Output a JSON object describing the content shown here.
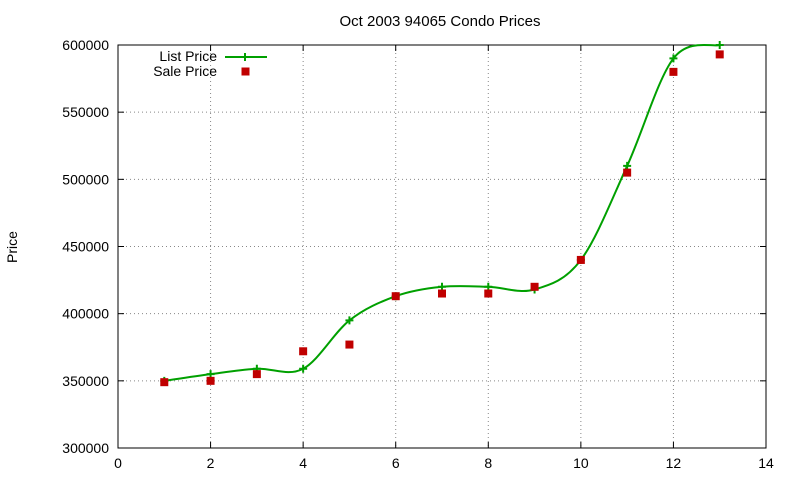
{
  "chart_data": {
    "type": "line",
    "title": "Oct 2003 94065 Condo Prices",
    "xlabel": "",
    "ylabel": "Price",
    "xlim": [
      0,
      14
    ],
    "ylim": [
      300000,
      600000
    ],
    "xticks": [
      0,
      2,
      4,
      6,
      8,
      10,
      12,
      14
    ],
    "yticks": [
      300000,
      350000,
      400000,
      450000,
      500000,
      550000,
      600000
    ],
    "grid": true,
    "legend_position": "top-left",
    "series": [
      {
        "name": "List Price",
        "style": "smooth line with plus markers",
        "color": "#00a000",
        "x": [
          1,
          2,
          3,
          4,
          5,
          6,
          7,
          8,
          9,
          10,
          11,
          12,
          13
        ],
        "y": [
          350000,
          355000,
          359000,
          359000,
          395000,
          413000,
          420000,
          420000,
          418000,
          440000,
          510000,
          590000,
          600000
        ]
      },
      {
        "name": "Sale Price",
        "style": "square markers",
        "color": "#c00000",
        "x": [
          1,
          2,
          3,
          4,
          5,
          6,
          7,
          8,
          9,
          10,
          11,
          12,
          13
        ],
        "y": [
          349000,
          350000,
          355000,
          372000,
          377000,
          413000,
          415000,
          415000,
          420000,
          440000,
          505000,
          580000,
          593000
        ]
      }
    ]
  }
}
